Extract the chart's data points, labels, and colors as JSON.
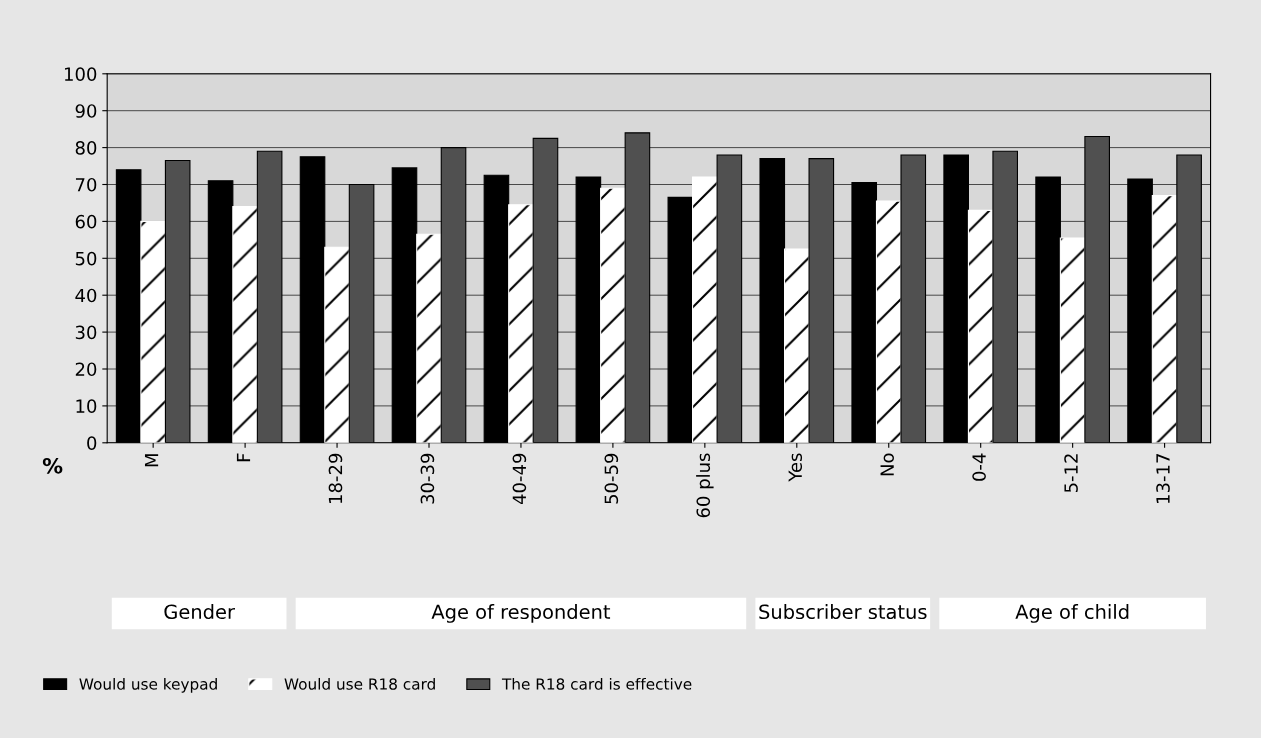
{
  "chart_data": {
    "type": "bar",
    "ylabel": "%",
    "categories": [
      "M",
      "F",
      "18-29",
      "30-39",
      "40-49",
      "50-59",
      "60 plus",
      "Yes",
      "No",
      "0-4",
      "5-12",
      "13-17"
    ],
    "series": [
      {
        "name": "Would use keypad",
        "color": "#000000",
        "values": [
          74,
          71,
          77.5,
          74.5,
          72.5,
          72,
          66.5,
          77,
          70.5,
          78,
          72,
          71.5
        ]
      },
      {
        "name": "Would use R18 card",
        "color": "#ffffff",
        "values": [
          60,
          64,
          53,
          56.5,
          64.5,
          69,
          72,
          52.5,
          65.5,
          63,
          55.5,
          67
        ]
      },
      {
        "name": "The R18 card is effective",
        "color": "#505050",
        "values": [
          76.5,
          79,
          70,
          80,
          82.5,
          84,
          78,
          77,
          78,
          79,
          83,
          78
        ]
      }
    ],
    "ylim": [
      0,
      100
    ],
    "yticks": [
      0,
      10,
      20,
      30,
      40,
      50,
      60,
      70,
      80,
      90,
      100
    ],
    "grid": "y",
    "legend": "bottom left",
    "annotations": [
      "Gender",
      "Age of respondent",
      "Subscriber status",
      "Age of child"
    ]
  }
}
